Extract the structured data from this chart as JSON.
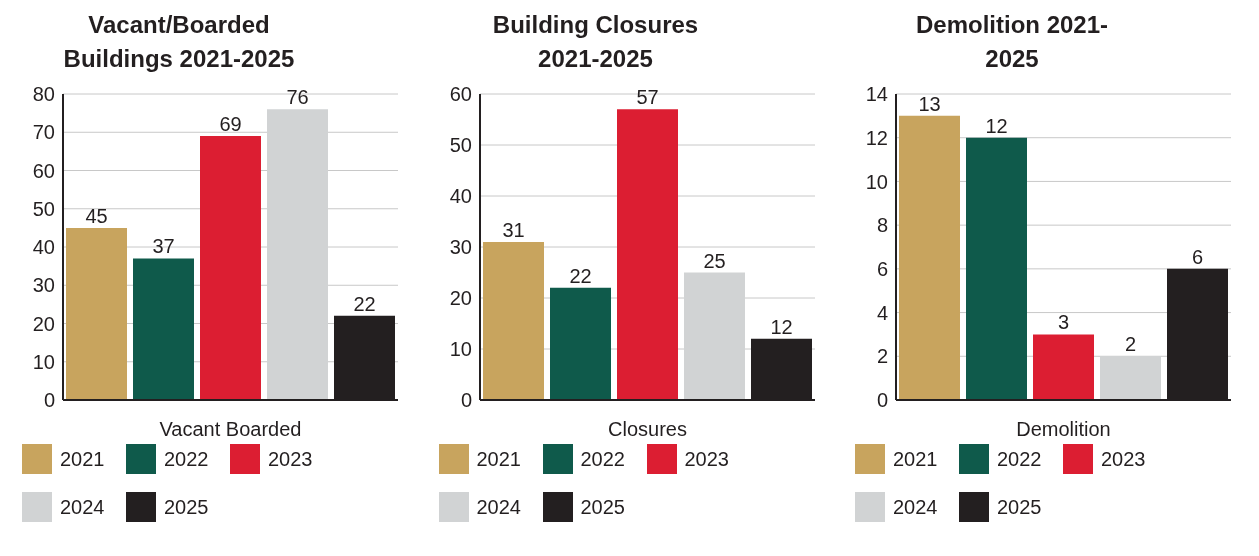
{
  "chart_data": [
    {
      "type": "bar",
      "title": "Vacant/Boarded Buildings 2021-2025",
      "xlabel": "Vacant Boarded",
      "categories": [
        null,
        null,
        null,
        null,
        null
      ],
      "series": [
        {
          "name": "2021",
          "color": "#c8a45e",
          "values": [
            45,
            null,
            null,
            null,
            null
          ]
        },
        {
          "name": "2022",
          "color": "#0f5a4b",
          "values": [
            null,
            37,
            null,
            null,
            null
          ]
        },
        {
          "name": "2023",
          "color": "#dc1e32",
          "values": [
            null,
            null,
            69,
            null,
            null
          ]
        },
        {
          "name": "2024",
          "color": "#d1d3d4",
          "values": [
            null,
            null,
            null,
            76,
            null
          ]
        },
        {
          "name": "2025",
          "color": "#231f20",
          "values": [
            null,
            null,
            null,
            null,
            22
          ]
        }
      ],
      "ylim": [
        0,
        80
      ],
      "yticks": [
        0,
        10,
        20,
        30,
        40,
        50,
        60,
        70,
        80
      ],
      "grid": "y",
      "legend": "bottom",
      "data_labels": true
    },
    {
      "type": "bar",
      "title": "Building Closures 2021-2025",
      "xlabel": "Closures",
      "categories": [
        null,
        null,
        null,
        null,
        null
      ],
      "series": [
        {
          "name": "2021",
          "color": "#c8a45e",
          "values": [
            31,
            null,
            null,
            null,
            null
          ]
        },
        {
          "name": "2022",
          "color": "#0f5a4b",
          "values": [
            null,
            22,
            null,
            null,
            null
          ]
        },
        {
          "name": "2023",
          "color": "#dc1e32",
          "values": [
            null,
            null,
            57,
            null,
            null
          ]
        },
        {
          "name": "2024",
          "color": "#d1d3d4",
          "values": [
            null,
            null,
            null,
            25,
            null
          ]
        },
        {
          "name": "2025",
          "color": "#231f20",
          "values": [
            null,
            null,
            null,
            null,
            12
          ]
        }
      ],
      "ylim": [
        0,
        60
      ],
      "yticks": [
        0,
        10,
        20,
        30,
        40,
        50,
        60
      ],
      "grid": "y",
      "legend": "bottom",
      "data_labels": true
    },
    {
      "type": "bar",
      "title": "Demolition 2021-2025",
      "xlabel": "Demolition",
      "categories": [
        null,
        null,
        null,
        null,
        null
      ],
      "series": [
        {
          "name": "2021",
          "color": "#c8a45e",
          "values": [
            13,
            null,
            null,
            null,
            null
          ]
        },
        {
          "name": "2022",
          "color": "#0f5a4b",
          "values": [
            null,
            12,
            null,
            null,
            null
          ]
        },
        {
          "name": "2023",
          "color": "#dc1e32",
          "values": [
            null,
            null,
            3,
            null,
            null
          ]
        },
        {
          "name": "2024",
          "color": "#d1d3d4",
          "values": [
            null,
            null,
            null,
            2,
            null
          ]
        },
        {
          "name": "2025",
          "color": "#231f20",
          "values": [
            null,
            null,
            null,
            null,
            6
          ]
        }
      ],
      "ylim": [
        0,
        14
      ],
      "yticks": [
        0,
        2,
        4,
        6,
        8,
        10,
        12,
        14
      ],
      "grid": "y",
      "legend": "bottom",
      "data_labels": true
    }
  ]
}
